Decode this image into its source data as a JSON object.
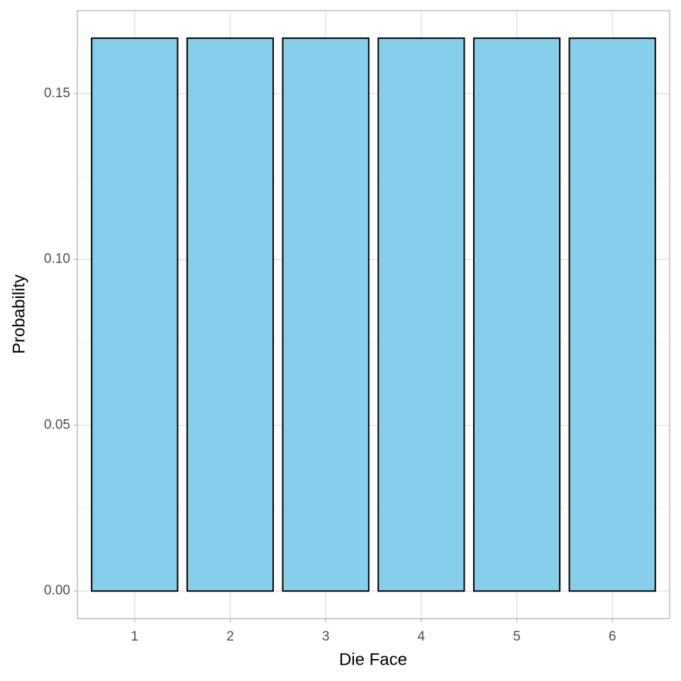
{
  "chart_data": {
    "type": "bar",
    "x_label": "Die Face",
    "y_label": "Probability",
    "categories": [
      "1",
      "2",
      "3",
      "4",
      "5",
      "6"
    ],
    "values": [
      0.1667,
      0.1667,
      0.1667,
      0.1667,
      0.1667,
      0.1667
    ],
    "color": "#87ceeb",
    "edge_color": "#000000",
    "ylim": [
      -0.0083,
      0.175
    ],
    "yticks": [
      {
        "value": 0,
        "label": "0.00"
      },
      {
        "value": 0.05,
        "label": "0.05"
      },
      {
        "value": 0.1,
        "label": "0.10"
      },
      {
        "value": 0.15,
        "label": "0.15"
      }
    ],
    "grid": true
  }
}
